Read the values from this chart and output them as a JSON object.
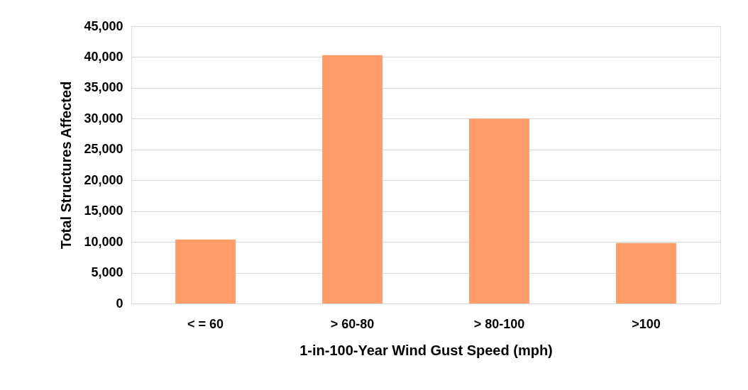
{
  "chart_data": {
    "type": "bar",
    "xlabel": "1-in-100-Year Wind Gust Speed (mph)",
    "ylabel": "Total Structures Affected",
    "categories": [
      "< = 60",
      "> 60-80",
      "> 80-100",
      ">100"
    ],
    "values": [
      10400,
      40300,
      30000,
      9800
    ],
    "color": "#fe9d6a",
    "ylim": [
      0,
      45000
    ],
    "yticks": [
      {
        "value": 0,
        "label": "0"
      },
      {
        "value": 5000,
        "label": "5,000"
      },
      {
        "value": 10000,
        "label": "10,000"
      },
      {
        "value": 15000,
        "label": "15,000"
      },
      {
        "value": 20000,
        "label": "20,000"
      },
      {
        "value": 25000,
        "label": "25,000"
      },
      {
        "value": 30000,
        "label": "30,000"
      },
      {
        "value": 35000,
        "label": "35,000"
      },
      {
        "value": 40000,
        "label": "40,000"
      },
      {
        "value": 45000,
        "label": "45,000"
      }
    ],
    "grid": "y"
  }
}
